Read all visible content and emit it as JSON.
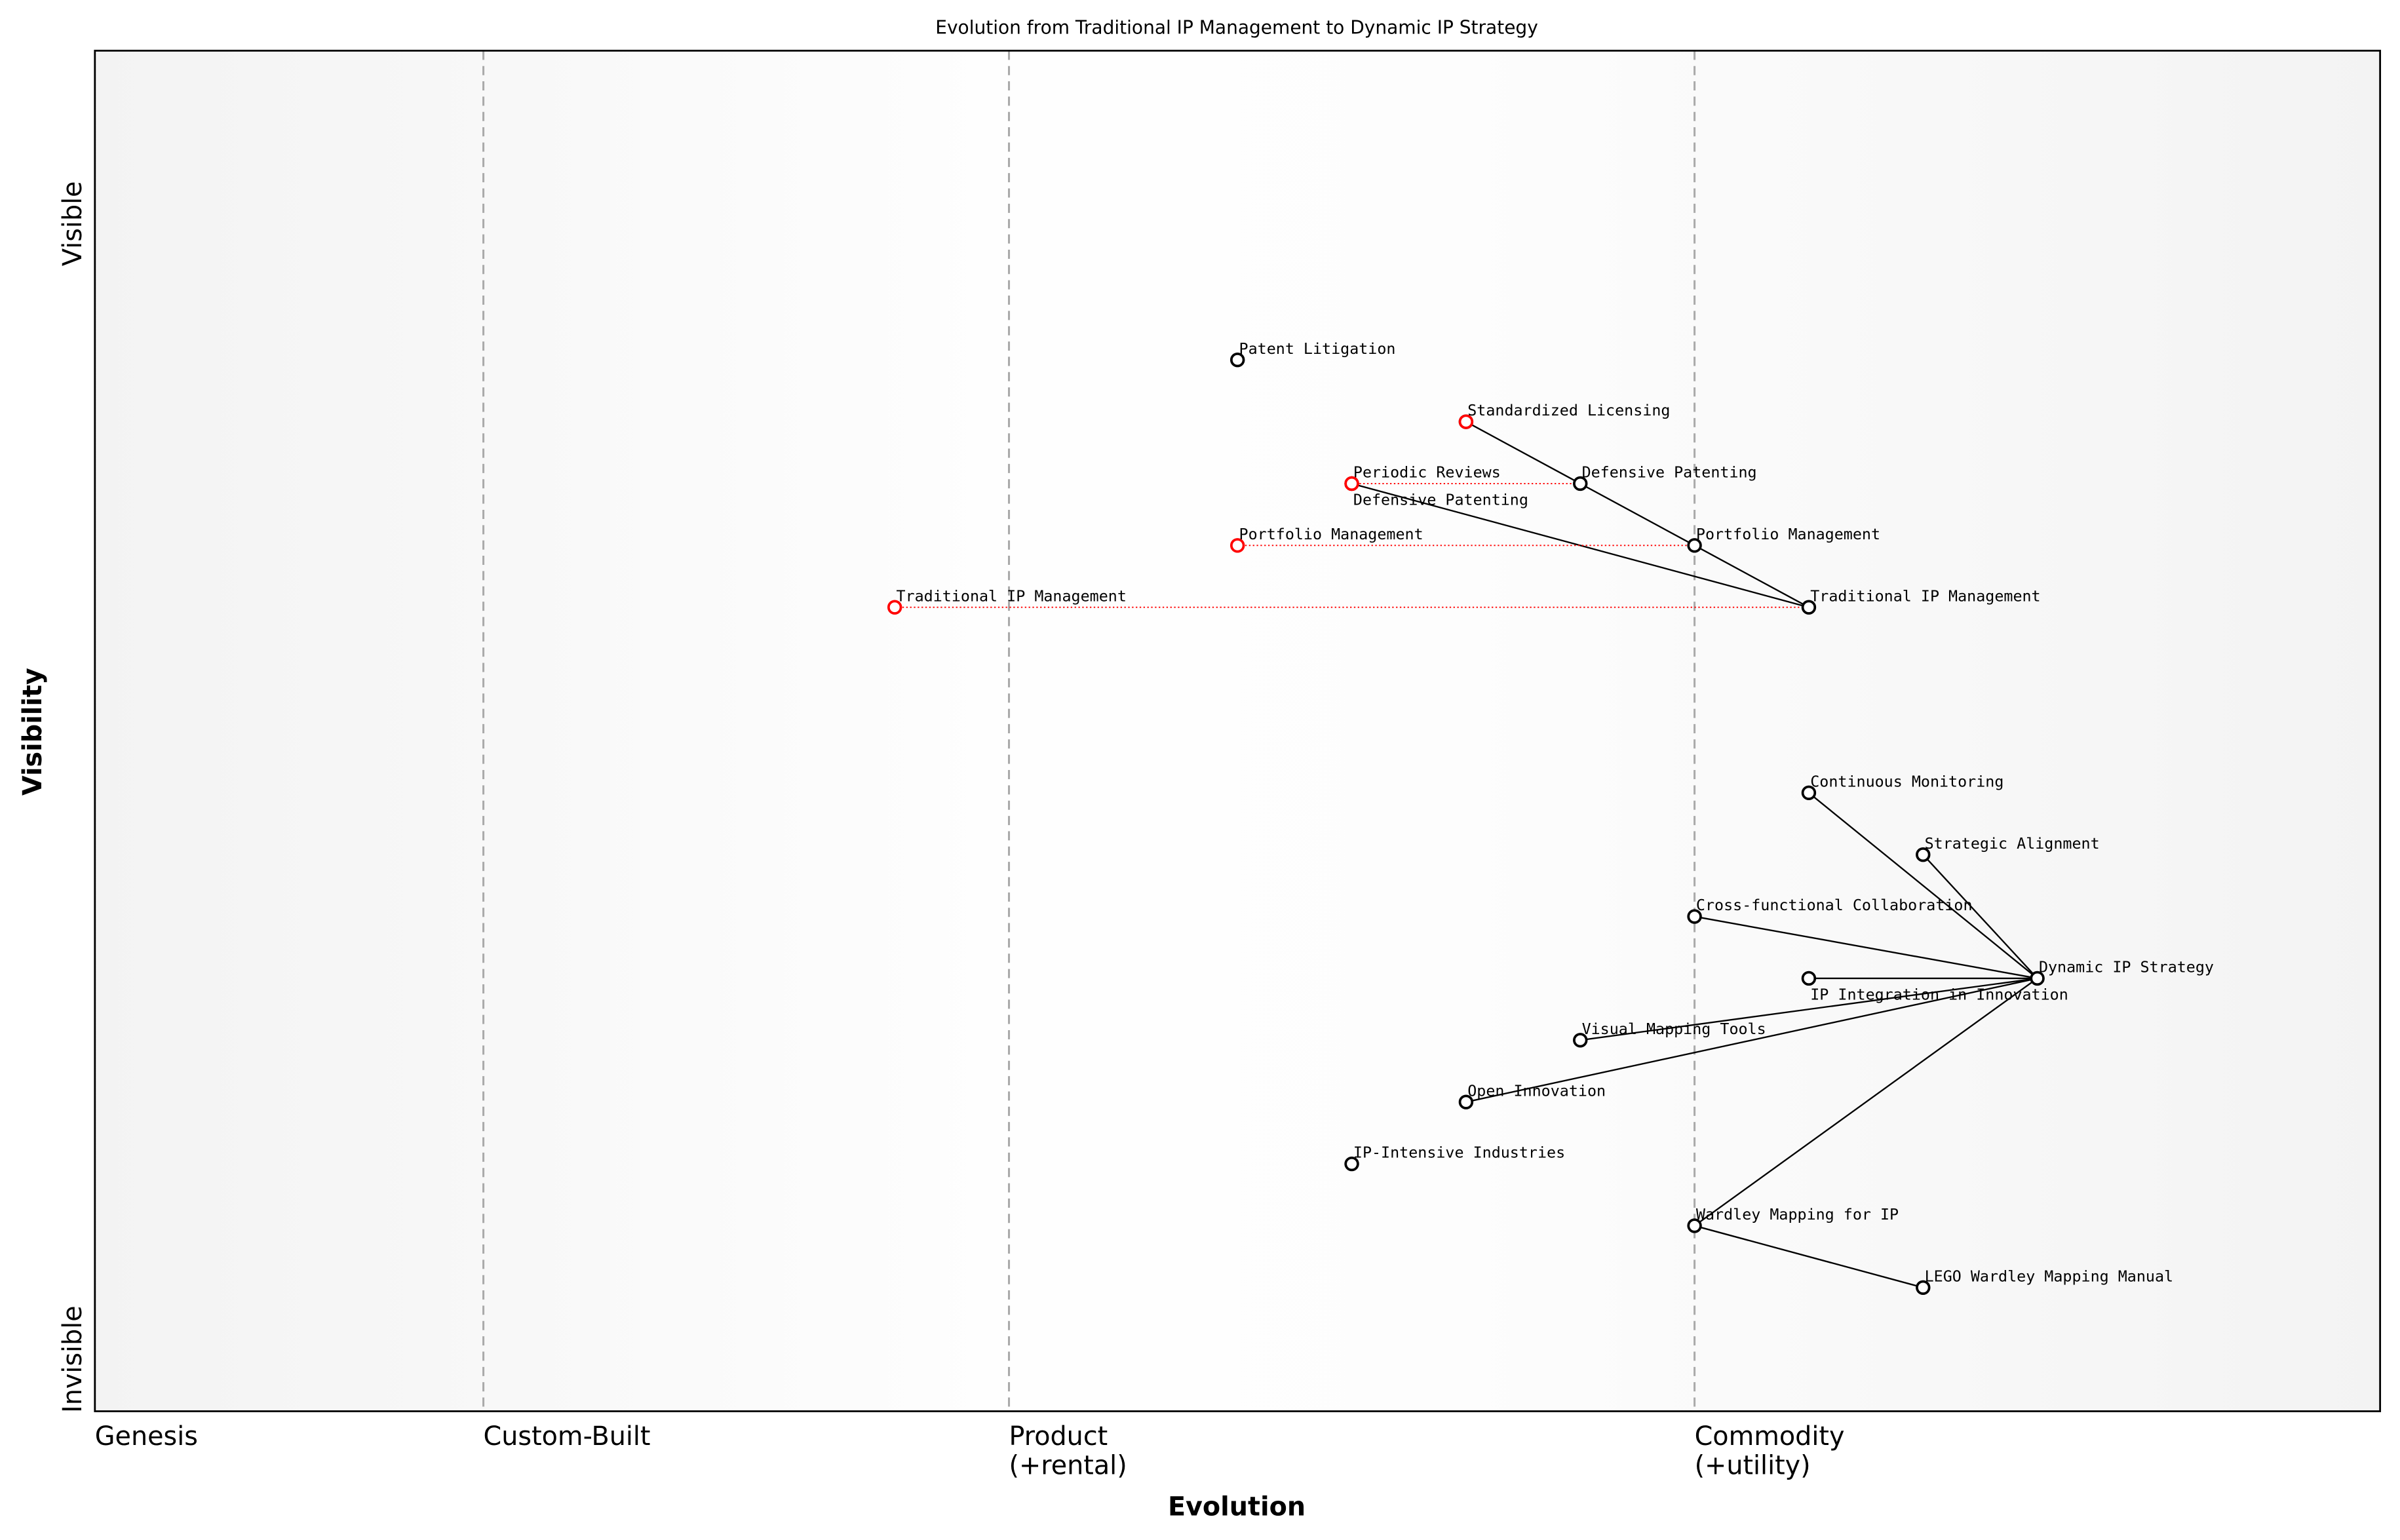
{
  "chart_data": {
    "type": "scatter",
    "title": "Evolution from Traditional IP Management to Dynamic IP Strategy",
    "xlabel": "Evolution",
    "ylabel": "Visibility",
    "xlim": [
      0,
      1
    ],
    "ylim": [
      0,
      1.1
    ],
    "x_stages": [
      {
        "value": 0.0,
        "label": "Genesis"
      },
      {
        "value": 0.17,
        "label": "Custom-Built"
      },
      {
        "value": 0.4,
        "label": "Product\n(+rental)"
      },
      {
        "value": 0.7,
        "label": "Commodity\n(+utility)"
      }
    ],
    "y_labels": {
      "top": "Visible",
      "bottom": "Invisible"
    },
    "grid": false,
    "colors": {
      "component": "#000000",
      "evolved_from": "#ff0000",
      "stage_line": "#aaaaaa"
    },
    "components": [
      {
        "name": "Patent Litigation",
        "x": 0.5,
        "y": 0.85
      },
      {
        "name": "Standardized Licensing",
        "x": 0.6,
        "y": 0.8
      },
      {
        "name": "Defensive Patenting",
        "x": 0.65,
        "y": 0.75
      },
      {
        "name": "Periodic Reviews",
        "x": 0.55,
        "y": 0.75
      },
      {
        "name": "Portfolio Management",
        "x": 0.7,
        "y": 0.7
      },
      {
        "name": "Traditional IP Management",
        "x": 0.75,
        "y": 0.65
      },
      {
        "name": "Continuous Monitoring",
        "x": 0.75,
        "y": 0.5
      },
      {
        "name": "Strategic Alignment",
        "x": 0.8,
        "y": 0.45
      },
      {
        "name": "Cross-functional Collaboration",
        "x": 0.7,
        "y": 0.4
      },
      {
        "name": "IP Integration in Innovation",
        "x": 0.75,
        "y": 0.35
      },
      {
        "name": "Dynamic IP Strategy",
        "x": 0.85,
        "y": 0.35
      },
      {
        "name": "Visual Mapping Tools",
        "x": 0.65,
        "y": 0.3
      },
      {
        "name": "Open Innovation",
        "x": 0.6,
        "y": 0.25
      },
      {
        "name": "IP-Intensive Industries",
        "x": 0.55,
        "y": 0.2
      },
      {
        "name": "Wardley Mapping for IP",
        "x": 0.7,
        "y": 0.15
      },
      {
        "name": "LEGO Wardley Mapping Manual",
        "x": 0.8,
        "y": 0.1
      }
    ],
    "evolutions": [
      {
        "name": "Standardized Licensing",
        "from_x": 0.6,
        "to_x": 0.6,
        "y": 0.8
      },
      {
        "name": "Periodic Reviews",
        "from_x": 0.55,
        "to_x": 0.55,
        "y": 0.75
      },
      {
        "name": "Defensive Patenting",
        "from_x": 0.55,
        "to_x": 0.65,
        "y": 0.75
      },
      {
        "name": "Portfolio Management",
        "from_x": 0.5,
        "to_x": 0.7,
        "y": 0.7
      },
      {
        "name": "Traditional IP Management",
        "from_x": 0.35,
        "to_x": 0.75,
        "y": 0.65
      }
    ],
    "links": [
      [
        "Standardized Licensing",
        "Defensive Patenting"
      ],
      [
        "Defensive Patenting",
        "Portfolio Management"
      ],
      [
        "Portfolio Management",
        "Traditional IP Management"
      ],
      [
        "Periodic Reviews",
        "Traditional IP Management"
      ],
      [
        "Dynamic IP Strategy",
        "Continuous Monitoring"
      ],
      [
        "Dynamic IP Strategy",
        "Strategic Alignment"
      ],
      [
        "Dynamic IP Strategy",
        "Cross-functional Collaboration"
      ],
      [
        "Dynamic IP Strategy",
        "IP Integration in Innovation"
      ],
      [
        "Dynamic IP Strategy",
        "Visual Mapping Tools"
      ],
      [
        "Dynamic IP Strategy",
        "Open Innovation"
      ],
      [
        "Dynamic IP Strategy",
        "Wardley Mapping for IP"
      ],
      [
        "Wardley Mapping for IP",
        "LEGO Wardley Mapping Manual"
      ]
    ]
  }
}
